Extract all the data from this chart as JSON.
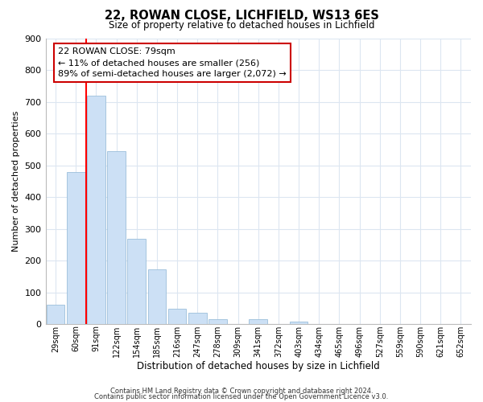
{
  "title": "22, ROWAN CLOSE, LICHFIELD, WS13 6ES",
  "subtitle": "Size of property relative to detached houses in Lichfield",
  "xlabel": "Distribution of detached houses by size in Lichfield",
  "ylabel": "Number of detached properties",
  "bar_labels": [
    "29sqm",
    "60sqm",
    "91sqm",
    "122sqm",
    "154sqm",
    "185sqm",
    "216sqm",
    "247sqm",
    "278sqm",
    "309sqm",
    "341sqm",
    "372sqm",
    "403sqm",
    "434sqm",
    "465sqm",
    "496sqm",
    "527sqm",
    "559sqm",
    "590sqm",
    "621sqm",
    "652sqm"
  ],
  "bar_values": [
    60,
    480,
    720,
    545,
    270,
    172,
    48,
    35,
    15,
    0,
    15,
    0,
    8,
    0,
    0,
    0,
    0,
    0,
    0,
    0,
    0
  ],
  "bar_color": "#cce0f5",
  "bar_edge_color": "#9bbfdb",
  "vline_x": 1.5,
  "vline_color": "red",
  "ylim": [
    0,
    900
  ],
  "yticks": [
    0,
    100,
    200,
    300,
    400,
    500,
    600,
    700,
    800,
    900
  ],
  "annotation_title": "22 ROWAN CLOSE: 79sqm",
  "annotation_line1": "← 11% of detached houses are smaller (256)",
  "annotation_line2": "89% of semi-detached houses are larger (2,072) →",
  "footer_line1": "Contains HM Land Registry data © Crown copyright and database right 2024.",
  "footer_line2": "Contains public sector information licensed under the Open Government Licence v3.0.",
  "background_color": "#ffffff",
  "grid_color": "#dce6f1"
}
